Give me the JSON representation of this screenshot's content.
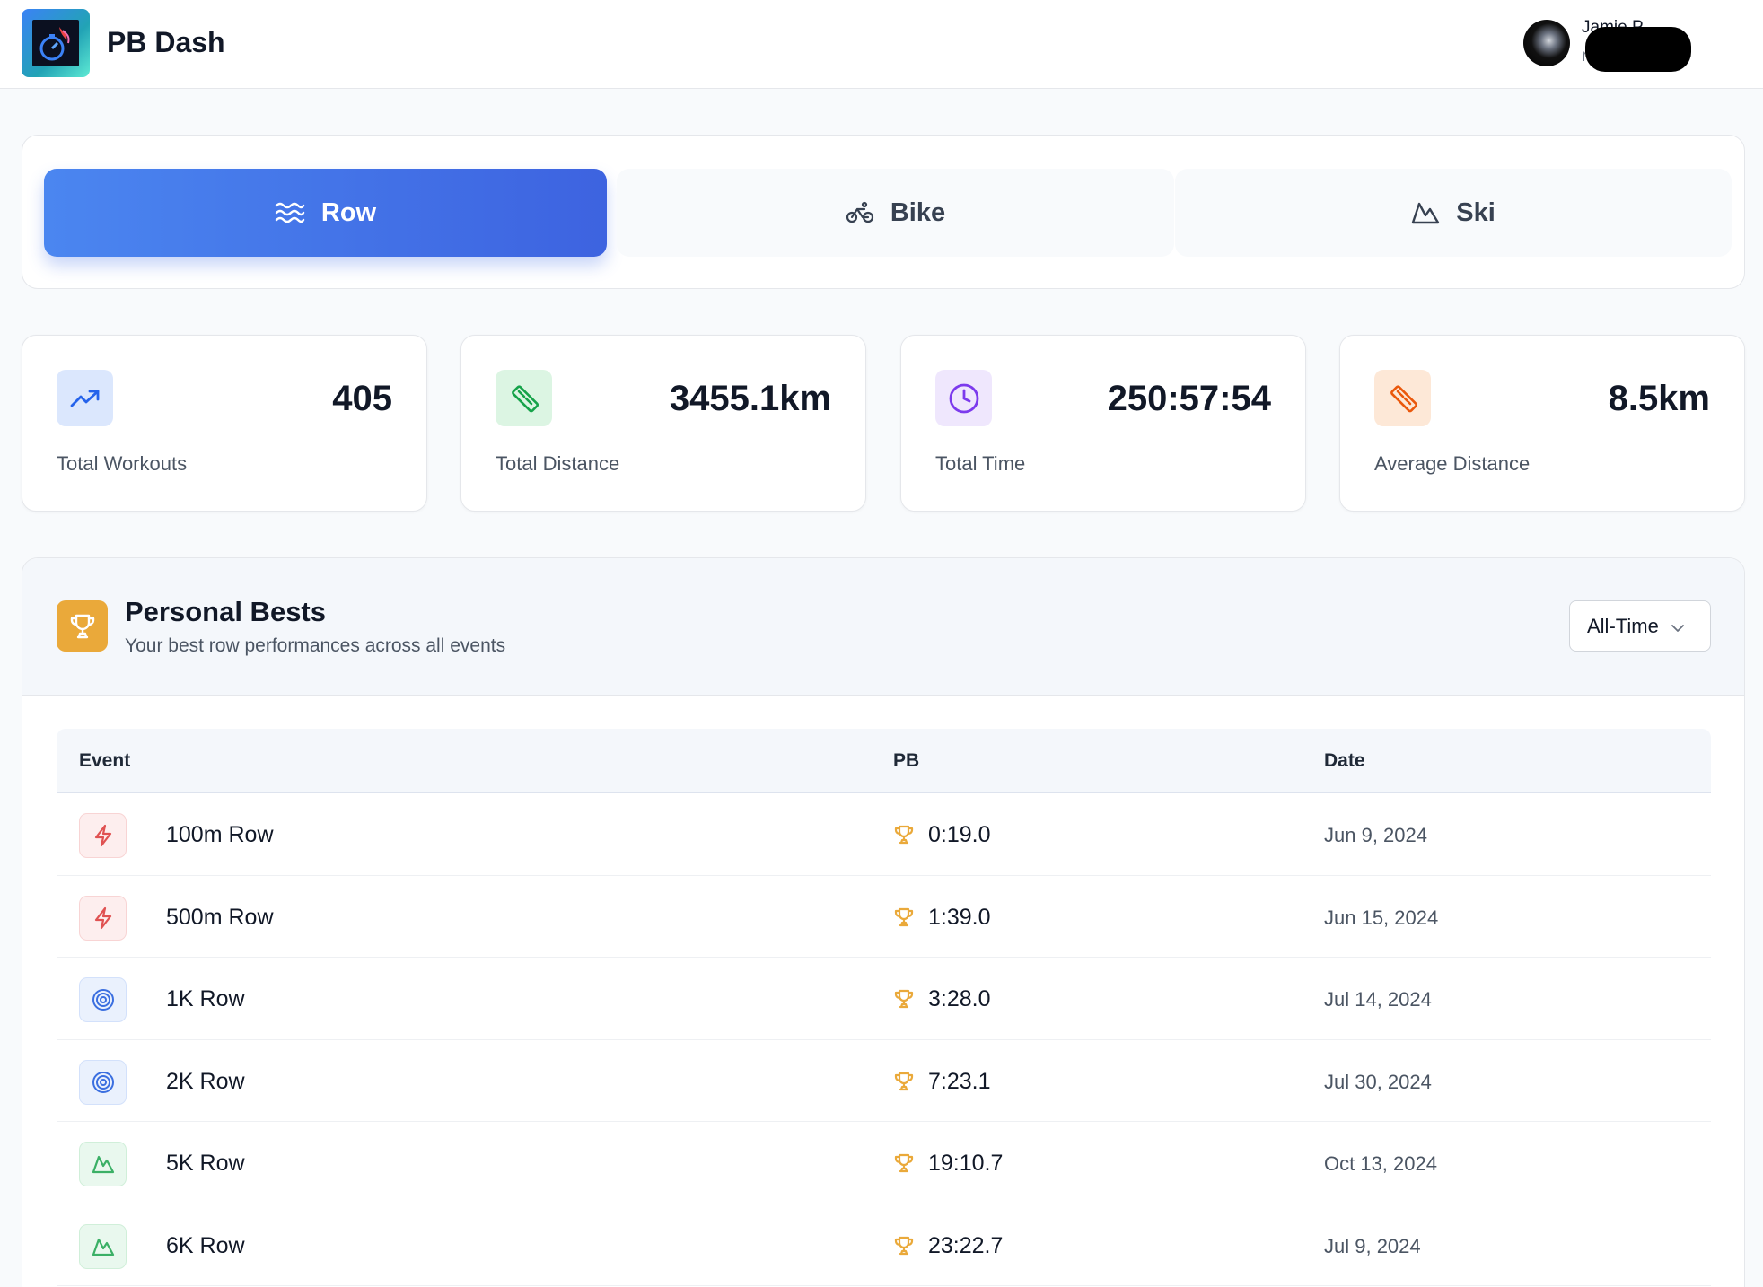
{
  "header": {
    "brand": "PB Dash",
    "user_name": "Jamie P",
    "user_email": "r          .com",
    "logo_icon": "stopwatch-flame-icon",
    "avatar_icon": "user-avatar"
  },
  "sport_tabs": [
    {
      "label": "Row",
      "icon": "waves-icon",
      "active": true
    },
    {
      "label": "Bike",
      "icon": "bike-icon",
      "active": false
    },
    {
      "label": "Ski",
      "icon": "mountain-icon",
      "active": false
    }
  ],
  "stats": [
    {
      "value": "405",
      "label": "Total Workouts",
      "icon": "trending-up-icon",
      "color": "#2563eb",
      "bg": "#dbe7fd"
    },
    {
      "value": "3455.1km",
      "label": "Total Distance",
      "icon": "ruler-icon",
      "color": "#16a34a",
      "bg": "#dcf5e3"
    },
    {
      "value": "250:57:54",
      "label": "Total Time",
      "icon": "clock-icon",
      "color": "#7c3aed",
      "bg": "#efe7fd"
    },
    {
      "value": "8.5km",
      "label": "Average Distance",
      "icon": "ruler-icon",
      "color": "#ea580c",
      "bg": "#fde8d7"
    }
  ],
  "personal_bests": {
    "title": "Personal Bests",
    "subtitle": "Your best row performances across all events",
    "filter_value": "All-Time",
    "columns": {
      "event": "Event",
      "pb": "PB",
      "date": "Date"
    },
    "rows": [
      {
        "event": "100m Row",
        "pb": "0:19.0",
        "date": "Jun 9, 2024",
        "kind": "sprint",
        "icon": "lightning-icon"
      },
      {
        "event": "500m Row",
        "pb": "1:39.0",
        "date": "Jun 15, 2024",
        "kind": "sprint",
        "icon": "lightning-icon"
      },
      {
        "event": "1K Row",
        "pb": "3:28.0",
        "date": "Jul 14, 2024",
        "kind": "mid",
        "icon": "target-icon"
      },
      {
        "event": "2K Row",
        "pb": "7:23.1",
        "date": "Jul 30, 2024",
        "kind": "mid",
        "icon": "target-icon"
      },
      {
        "event": "5K Row",
        "pb": "19:10.7",
        "date": "Oct 13, 2024",
        "kind": "long",
        "icon": "mountain-icon"
      },
      {
        "event": "6K Row",
        "pb": "23:22.7",
        "date": "Jul 9, 2024",
        "kind": "long",
        "icon": "mountain-icon"
      }
    ]
  },
  "colors": {
    "accent": "#3d63e0",
    "trophy": "#eaa93a",
    "sprint": "#e05252",
    "mid": "#3b6fe0",
    "long": "#3bb066"
  }
}
